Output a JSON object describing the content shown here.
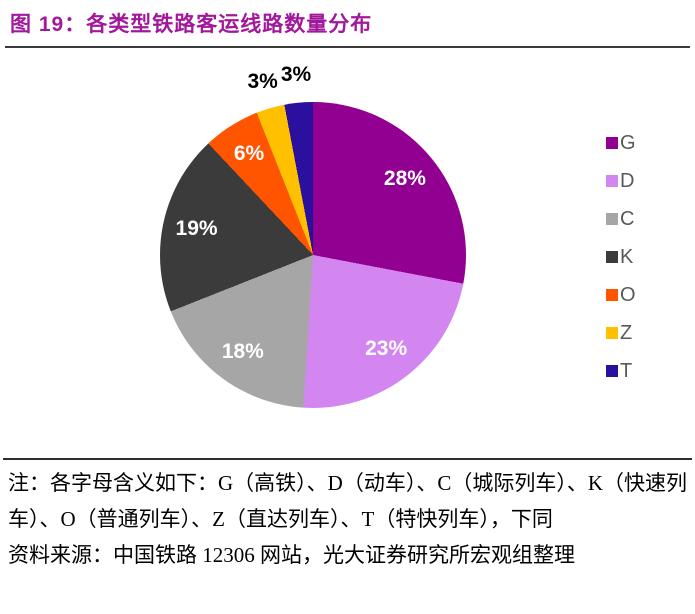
{
  "header": {
    "title": "图 19：各类型铁路客运线路数量分布"
  },
  "chart_data": {
    "type": "pie",
    "title": "各类型铁路客运线路数量分布",
    "start_angle_deg": 0,
    "direction": "clockwise",
    "legend_position": "right",
    "legend_text_color": "#595959",
    "slices": [
      {
        "label": "G",
        "value": 28,
        "display": "28%",
        "color": "#920092",
        "label_color": "#ffffff",
        "label_placement": "inside"
      },
      {
        "label": "D",
        "value": 23,
        "display": "23%",
        "color": "#D486F0",
        "label_color": "#ffffff",
        "label_placement": "inside"
      },
      {
        "label": "C",
        "value": 18,
        "display": "18%",
        "color": "#A6A6A6",
        "label_color": "#ffffff",
        "label_placement": "inside"
      },
      {
        "label": "K",
        "value": 19,
        "display": "19%",
        "color": "#3B3B3B",
        "label_color": "#ffffff",
        "label_placement": "inside"
      },
      {
        "label": "O",
        "value": 6,
        "display": "6%",
        "color": "#FF5400",
        "label_color": "#ffffff",
        "label_placement": "inside"
      },
      {
        "label": "Z",
        "value": 3,
        "display": "3%",
        "color": "#FFC000",
        "label_color": "#000000",
        "label_placement": "outside"
      },
      {
        "label": "T",
        "value": 3,
        "display": "3%",
        "color": "#2B10A0",
        "label_color": "#000000",
        "label_placement": "outside"
      }
    ]
  },
  "footer": {
    "note": "注：各字母含义如下：G（高铁）、D（动车）、C（城际列车）、K（快速列车）、O（普通列车）、Z（直达列车）、T（特快列车），下同",
    "source": "资料来源：中国铁路 12306 网站，光大证券研究所宏观组整理"
  },
  "colors": {
    "title": "#A2189C",
    "rule": "#3A3A3A"
  }
}
